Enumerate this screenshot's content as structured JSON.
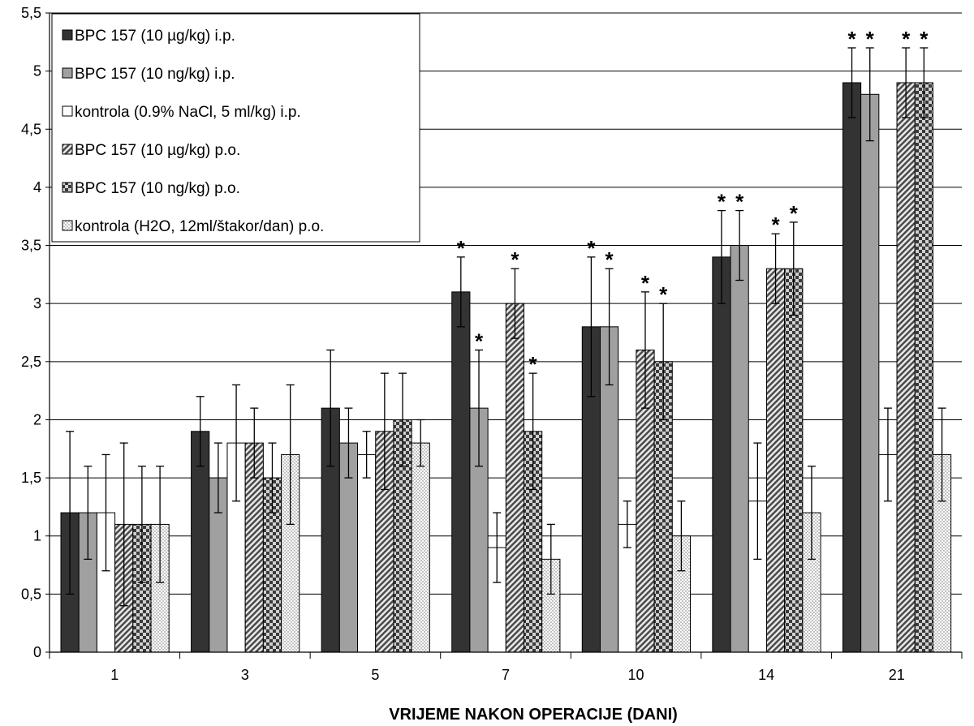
{
  "chart_data": {
    "type": "bar",
    "title": "",
    "xlabel": "VRIJEME NAKON OPERACIJE (DANI)",
    "ylabel": "",
    "ylim": [
      0,
      5.5
    ],
    "yticks": [
      "0",
      "0,5",
      "1",
      "1,5",
      "2",
      "2,5",
      "3",
      "3,5",
      "4",
      "4,5",
      "5",
      "5,5"
    ],
    "categories": [
      "1",
      "3",
      "5",
      "7",
      "10",
      "14",
      "21"
    ],
    "grid": true,
    "legend_position": "top-left",
    "significance_marker": "*",
    "series": [
      {
        "name": "BPC 157 (10 µg/kg) i.p.",
        "fill": "dark-solid",
        "color": "#333333",
        "values": [
          1.2,
          1.9,
          2.1,
          3.1,
          2.8,
          3.4,
          4.9
        ],
        "errors": [
          0.7,
          0.3,
          0.5,
          0.3,
          0.6,
          0.4,
          0.3
        ],
        "significant": [
          false,
          false,
          false,
          true,
          true,
          true,
          true
        ]
      },
      {
        "name": "BPC 157 (10 ng/kg) i.p.",
        "fill": "gray-solid",
        "color": "#a0a0a0",
        "values": [
          1.2,
          1.5,
          1.8,
          2.1,
          2.8,
          3.5,
          4.8
        ],
        "errors": [
          0.4,
          0.3,
          0.3,
          0.5,
          0.5,
          0.3,
          0.4
        ],
        "significant": [
          false,
          false,
          false,
          true,
          true,
          true,
          true
        ]
      },
      {
        "name": "kontrola (0.9% NaCl, 5 ml/kg) i.p.",
        "fill": "white",
        "color": "#ffffff",
        "values": [
          1.2,
          1.8,
          1.7,
          0.9,
          1.1,
          1.3,
          1.7
        ],
        "errors": [
          0.5,
          0.5,
          0.2,
          0.3,
          0.2,
          0.5,
          0.4
        ],
        "significant": [
          false,
          false,
          false,
          false,
          false,
          false,
          false
        ]
      },
      {
        "name": "BPC 157 (10 µg/kg) p.o.",
        "fill": "diagonal-hatch",
        "color": "#555555",
        "values": [
          1.1,
          1.8,
          1.9,
          3.0,
          2.6,
          3.3,
          4.9
        ],
        "errors": [
          0.7,
          0.3,
          0.5,
          0.3,
          0.5,
          0.3,
          0.3
        ],
        "significant": [
          false,
          false,
          false,
          true,
          true,
          true,
          true
        ]
      },
      {
        "name": "BPC 157 (10 ng/kg) p.o.",
        "fill": "checkerboard",
        "color": "#444444",
        "values": [
          1.1,
          1.5,
          2.0,
          1.9,
          2.5,
          3.3,
          4.9
        ],
        "errors": [
          0.5,
          0.3,
          0.4,
          0.5,
          0.5,
          0.4,
          0.3
        ],
        "significant": [
          false,
          false,
          false,
          true,
          true,
          true,
          true
        ]
      },
      {
        "name": "kontrola (H2O, 12ml/štakor/dan) p.o.",
        "fill": "dotted",
        "color": "#f0f0f0",
        "values": [
          1.1,
          1.7,
          1.8,
          0.8,
          1.0,
          1.2,
          1.7
        ],
        "errors": [
          0.5,
          0.6,
          0.2,
          0.3,
          0.3,
          0.4,
          0.4
        ],
        "significant": [
          false,
          false,
          false,
          false,
          false,
          false,
          false
        ]
      }
    ]
  }
}
